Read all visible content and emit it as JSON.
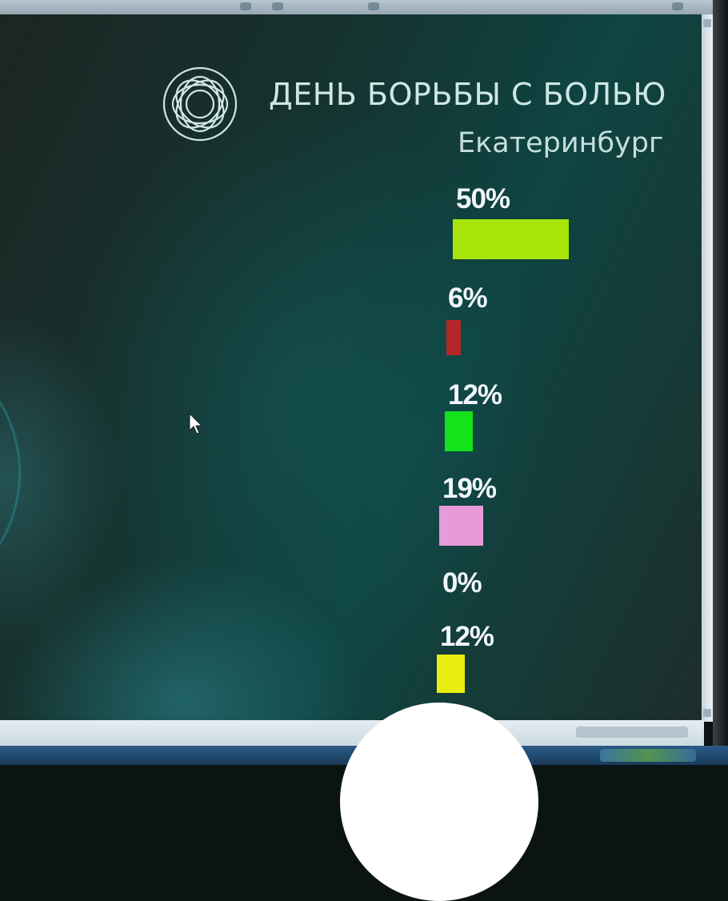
{
  "slide": {
    "title": "ДЕНЬ БОРЬБЫ С БОЛЬЮ",
    "subtitle": "Екатеринбург",
    "logo_icon": "rosette-logo-icon"
  },
  "chart_data": {
    "type": "bar",
    "orientation": "horizontal",
    "categories": [],
    "values": [
      50,
      6,
      12,
      19,
      0,
      12
    ],
    "labels": [
      "50%",
      "6%",
      "12%",
      "19%",
      "0%",
      "12%"
    ],
    "colors": [
      "#a6e40a",
      "#b3262a",
      "#14e21a",
      "#e79ad9",
      "#000000",
      "#e8ee10"
    ],
    "unit": "%",
    "grid": false,
    "legend": "none"
  },
  "colors": {
    "background": "#15332f",
    "title_text": "#cfe6e6",
    "value_text": "#f2f6ff"
  }
}
